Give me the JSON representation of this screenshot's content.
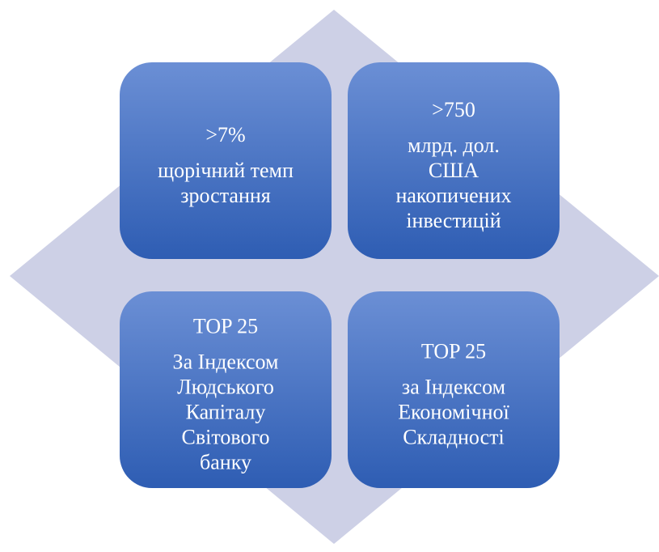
{
  "cells": [
    {
      "headline": ">7%",
      "lines": [
        "щорічний темп",
        "зростання"
      ]
    },
    {
      "headline": ">750",
      "lines": [
        "млрд. дол.",
        "США",
        "накопичених",
        "інвестицій"
      ]
    },
    {
      "headline": "TOP 25",
      "lines": [
        "За Індексом",
        "Людського",
        "Капіталу",
        "Світового",
        "банку"
      ]
    },
    {
      "headline": "TOP 25",
      "lines": [
        "за Індексом",
        "Економічної",
        "Складності"
      ]
    }
  ]
}
